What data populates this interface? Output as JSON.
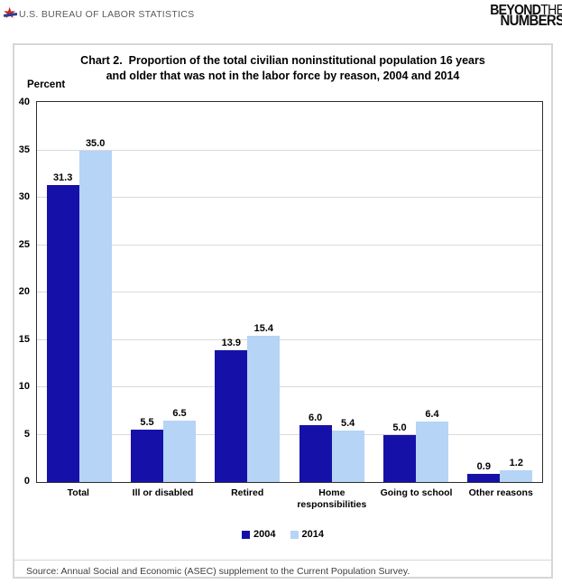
{
  "header": {
    "agency": "U.S. BUREAU OF LABOR STATISTICS",
    "logo_line1_bold": "BEYOND",
    "logo_line1_light": "THE",
    "logo_line2": "NUMBERS"
  },
  "chart_data": {
    "type": "bar",
    "title_line1": "Chart 2.  Proportion of the total civilian noninstitutional population 16 years",
    "title_line2": "and older that was not in the labor force by reason, 2004 and 2014",
    "ylabel": "Percent",
    "xlabel": "",
    "ylim": [
      0,
      40
    ],
    "ytick_step": 5,
    "grid": true,
    "legend_position": "bottom",
    "categories": [
      "Total",
      "Ill or disabled",
      "Retired",
      "Home responsibilities",
      "Going to school",
      "Other reasons"
    ],
    "series": [
      {
        "name": "2004",
        "color": "#1511a8",
        "values": [
          31.3,
          5.5,
          13.9,
          6.0,
          5.0,
          0.9
        ]
      },
      {
        "name": "2014",
        "color": "#b5d4f6",
        "values": [
          35.0,
          6.5,
          15.4,
          5.4,
          6.4,
          1.2
        ]
      }
    ]
  },
  "footer": {
    "source": "Source: Annual Social and Economic (ASEC) supplement to the Current Population Survey."
  }
}
